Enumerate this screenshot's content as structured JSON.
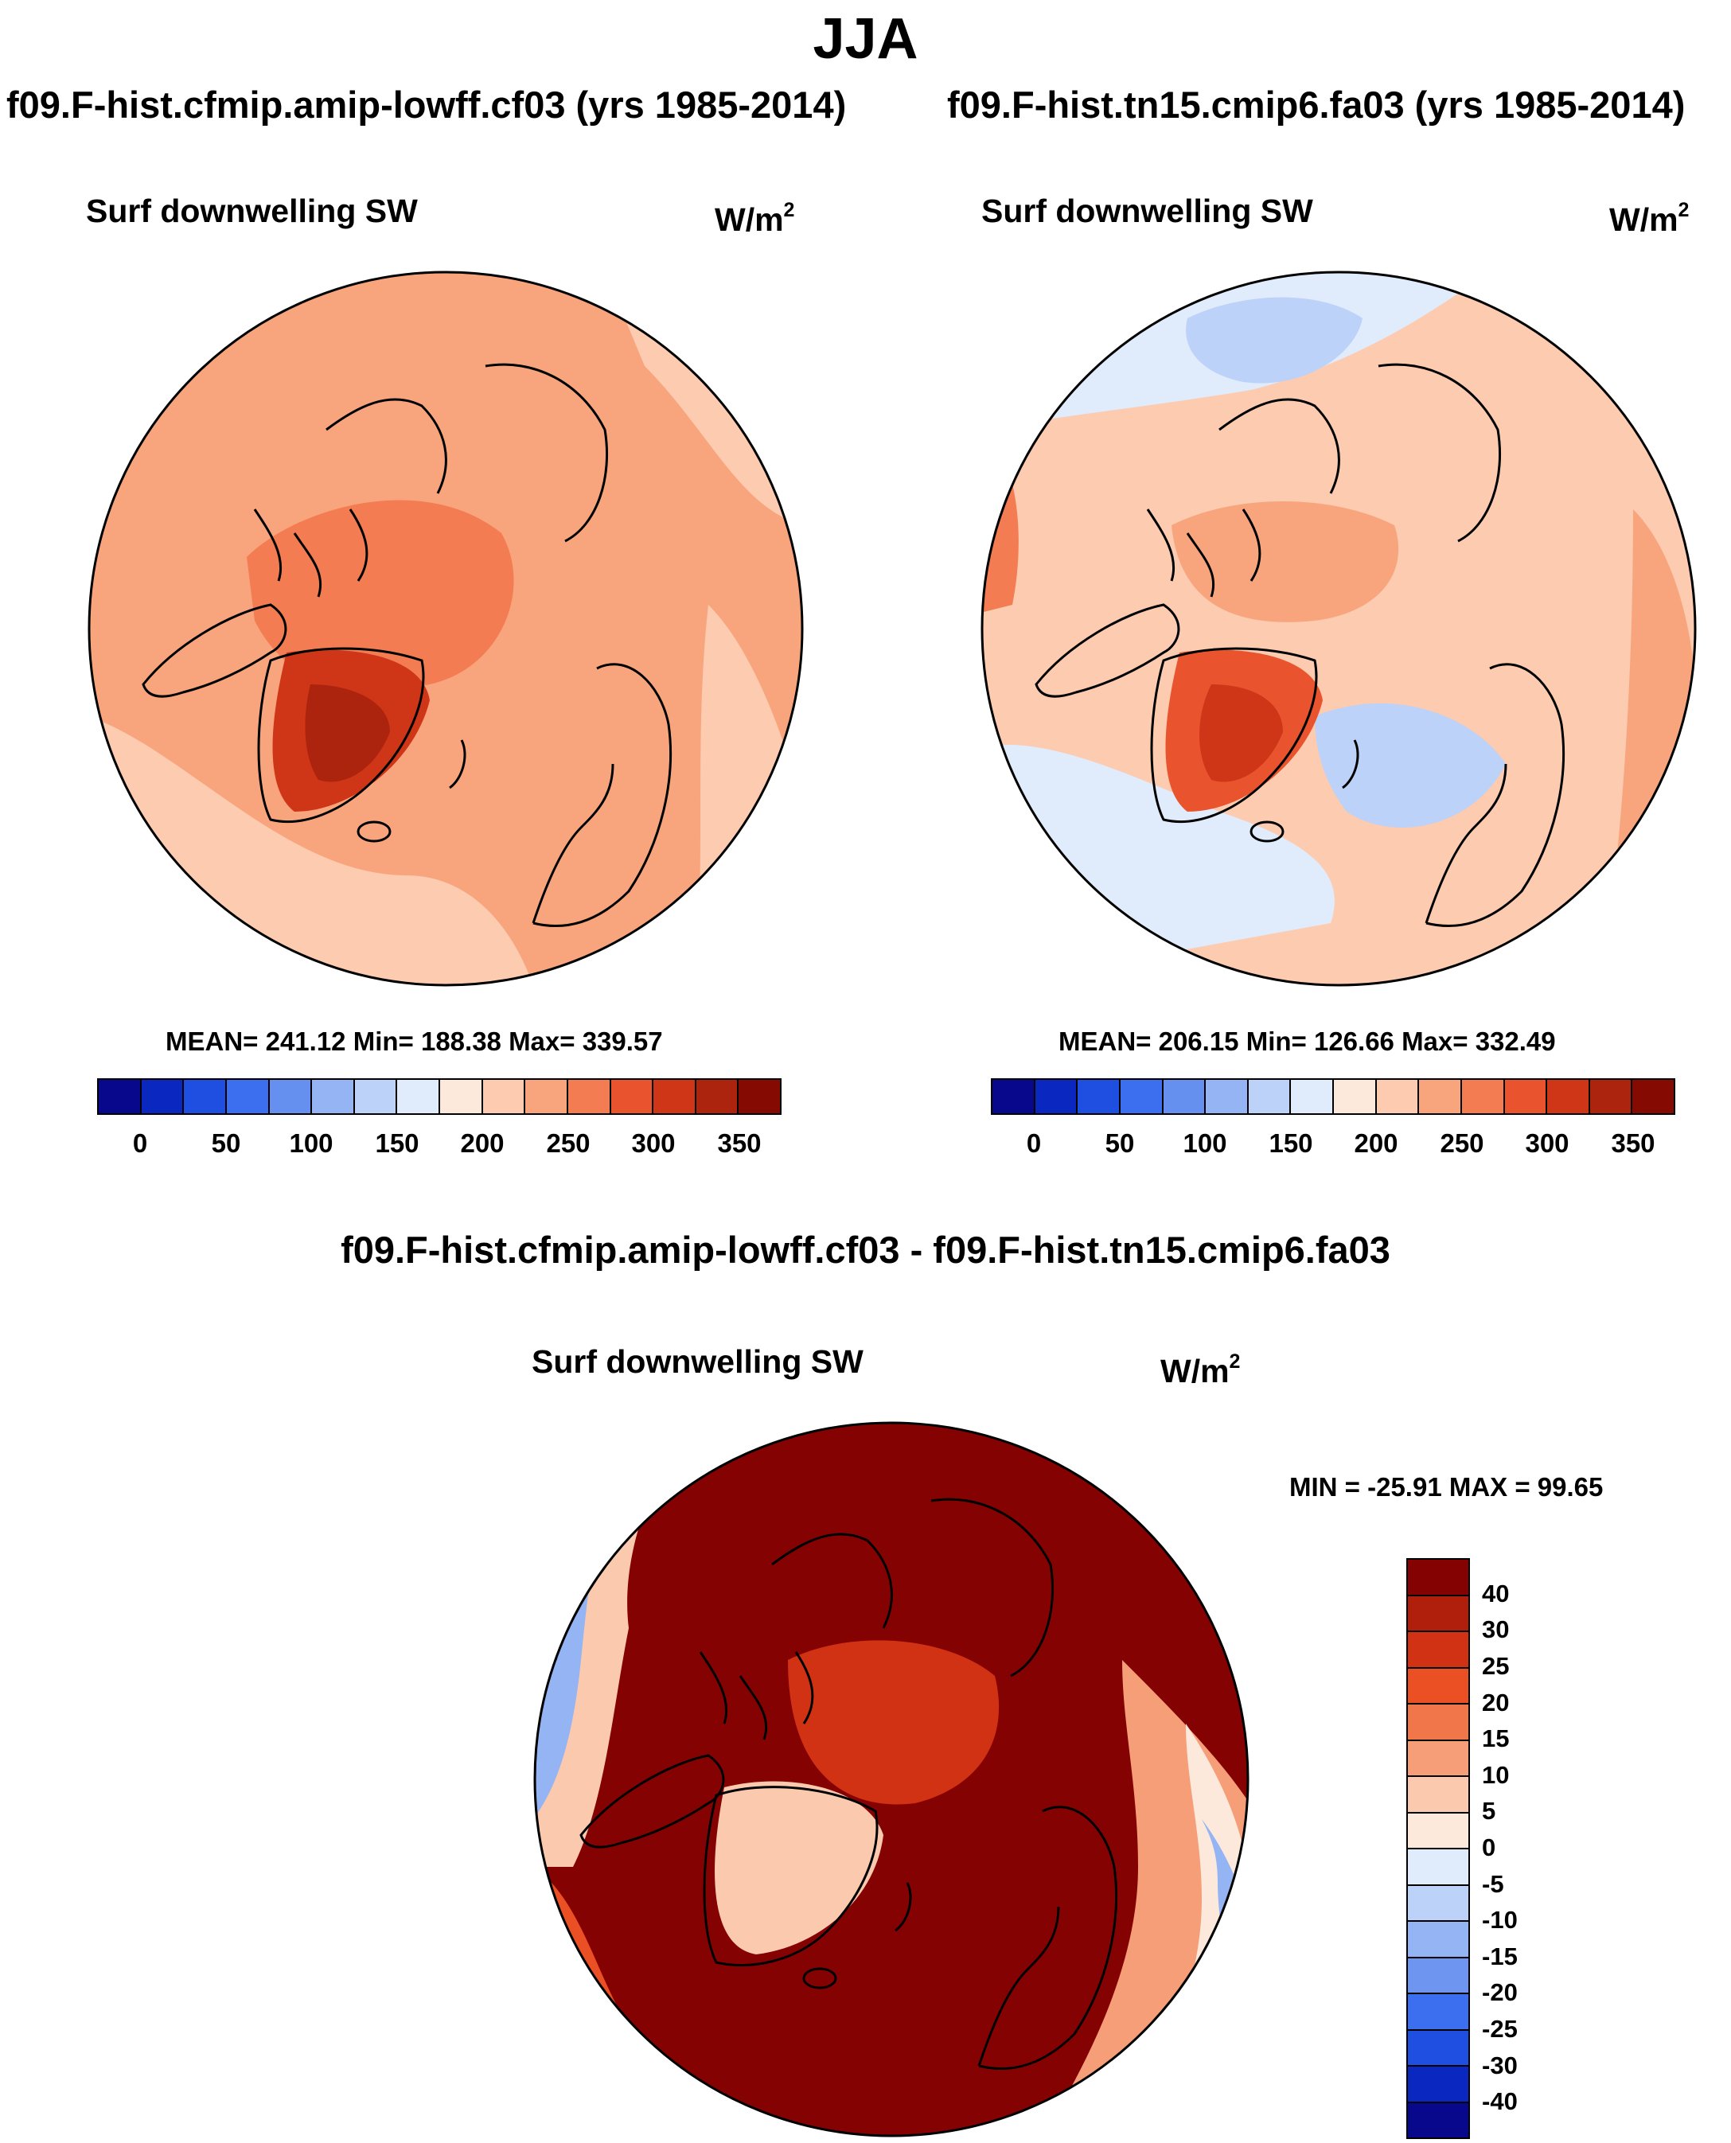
{
  "title": "JJA",
  "panels": [
    {
      "case_title": "f09.F-hist.cfmip.amip-lowff.cf03 (yrs 1985-2014)",
      "variable": "Surf downwelling SW",
      "units": "W/m",
      "units_exp": "2",
      "stats": "MEAN= 241.12  Min= 188.38  Max= 339.57",
      "colorbar_ticks": [
        "0",
        "50",
        "100",
        "150",
        "200",
        "250",
        "300",
        "350"
      ]
    },
    {
      "case_title": "f09.F-hist.tn15.cmip6.fa03 (yrs 1985-2014)",
      "variable": "Surf downwelling SW",
      "units": "W/m",
      "units_exp": "2",
      "stats": "MEAN= 206.15  Min= 126.66  Max= 332.49",
      "colorbar_ticks": [
        "0",
        "50",
        "100",
        "150",
        "200",
        "250",
        "300",
        "350"
      ]
    }
  ],
  "diff": {
    "case_title": "f09.F-hist.cfmip.amip-lowff.cf03 - f09.F-hist.tn15.cmip6.fa03",
    "variable": "Surf downwelling SW",
    "units": "W/m",
    "units_exp": "2",
    "stats": "MIN = -25.91 MAX =  99.65",
    "colorbar_ticks": [
      "40",
      "30",
      "25",
      "20",
      "15",
      "10",
      "5",
      "0",
      "-5",
      "-10",
      "-15",
      "-20",
      "-25",
      "-30",
      "-40"
    ]
  },
  "colors": {
    "abs_scale": [
      "#08088c",
      "#0a28c0",
      "#1e4fe0",
      "#3c6ef0",
      "#6690f0",
      "#94b4f4",
      "#bcd2f8",
      "#e0ecfc",
      "#fde9dc",
      "#fccbb0",
      "#f8a57e",
      "#f37c52",
      "#e9542e",
      "#cf3618",
      "#ad240e",
      "#850a02"
    ],
    "diff_scale": [
      "#850202",
      "#b01f0c",
      "#d23214",
      "#ea5024",
      "#f1764a",
      "#f59e78",
      "#fbcaae",
      "#fde9dc",
      "#e0ecfc",
      "#bcd2f8",
      "#94b4f4",
      "#6e95f0",
      "#3c6ef0",
      "#1e4fe0",
      "#0a28c0",
      "#08088c"
    ]
  },
  "map_data": {
    "projection": "north polar stereographic",
    "season": "JJA",
    "panel_1_pattern": "orange-red nearly everywhere; darkest over Greenland and the central Arctic",
    "panel_2_pattern": "pale red with light blue over the North Atlantic and Pacific; dark red over Greenland",
    "diff_pattern": "dark red over the Arctic Ocean and Eurasia; pink over Greenland; blue patches over the North Pacific and Atlantic margins"
  }
}
